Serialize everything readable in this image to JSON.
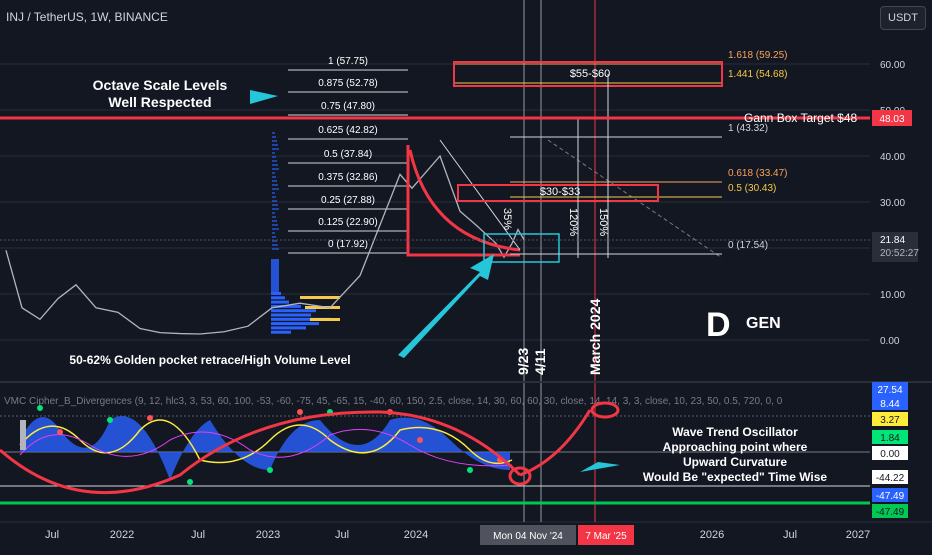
{
  "header": {
    "symbol_line": "INJ / TetherUS, 1W, BINANCE",
    "currency_button": "USDT"
  },
  "price_axis": {
    "ticks": [
      "60.00",
      "50.00",
      "40.00",
      "30.00",
      "20.00",
      "10.00",
      "0.00"
    ],
    "current_price": "21.84",
    "countdown": "20:52:27",
    "gann_price_tag": "48.03"
  },
  "time_axis": {
    "ticks": [
      "Jul",
      "2022",
      "Jul",
      "2023",
      "Jul",
      "2024",
      "Jul",
      "2026",
      "Jul",
      "2027"
    ],
    "cursor_label_1": "Mon 04 Nov '24",
    "cursor_label_2": "7 Mar '25",
    "cursor_label_partial": "Jul"
  },
  "octave_levels": [
    "1 (57.75)",
    "0.875 (52.78)",
    "0.75 (47.80)",
    "0.625 (42.82)",
    "0.5 (37.84)",
    "0.375 (32.86)",
    "0.25 (27.88)",
    "0.125 (22.90)",
    "0 (17.92)"
  ],
  "fib_levels": [
    {
      "label": "1.618 (59.25)",
      "color": "#f7a45c"
    },
    {
      "label": "1.441 (54.68)",
      "color": "#f7c948"
    },
    {
      "label": "1 (43.32)",
      "color": "#d1d4dc"
    },
    {
      "label": "0.618 (33.47)",
      "color": "#f7a45c"
    },
    {
      "label": "0.5 (30.43)",
      "color": "#f7c948"
    },
    {
      "label": "0 (17.54)",
      "color": "#d1d4dc"
    }
  ],
  "annotations": {
    "octave_title": "Octave Scale Levels",
    "octave_sub": "Well Respected",
    "gann": "Gann Box Target $48",
    "box_top": "$55-$60",
    "box_mid": "$30-$33",
    "pct_35": "35%",
    "pct_120": "120%",
    "pct_150": "150%",
    "golden_pocket": "50-62% Golden pocket retrace/High Volume Level",
    "date_923": "9/23",
    "date_411": "4/11",
    "march": "March 2024",
    "logo": "GEN",
    "wt_line1": "Wave Trend Oscillator",
    "wt_line2": "Approaching point where",
    "wt_line3": "Upward Curvature",
    "wt_line4": "Would Be \"expected\" Time Wise"
  },
  "oscillator": {
    "title": "VMC Cipher_B_Divergences (9, 12, hlc3, 3, 53, 60, 100, -53, -60, -75, 45, -65, 15, -40, 60, 150, 2.5, close, 14, 30, 60, 60, 30, close, 14, 14, 3, 3, close, 10, 23, 50, 0.5, 720, 0, 0",
    "values": [
      {
        "label": "27.54",
        "color": "#2962ff"
      },
      {
        "label": "8.44",
        "color": "#2962ff"
      },
      {
        "label": "3.27",
        "color": "#ffeb3b"
      },
      {
        "label": "1.84",
        "color": "#00e676"
      },
      {
        "label": "0.00",
        "color": "#ffffff"
      },
      {
        "label": "-44.22",
        "color": "#ffffff"
      },
      {
        "label": "-47.49",
        "color": "#2962ff"
      },
      {
        "label": "-47.49",
        "color": "#00c853"
      }
    ]
  },
  "colors": {
    "background": "#131722",
    "price_line": "#b2b5be",
    "red": "#f23645",
    "cyan": "#26c6da",
    "grid": "#2a2e39"
  },
  "chart_data": {
    "type": "line",
    "title": "INJ / TetherUS, 1W, BINANCE",
    "ylim": [
      0,
      65
    ],
    "series": [
      {
        "x": [
          "2021-03",
          "2021-05",
          "2021-07",
          "2021-09",
          "2021-11",
          "2022-01",
          "2022-03",
          "2022-05",
          "2022-07",
          "2022-09",
          "2022-11",
          "2023-01",
          "2023-03",
          "2023-05",
          "2023-07",
          "2023-09",
          "2023-11",
          "2024-01",
          "2024-02",
          "2024-03",
          "2024-04",
          "2024-05",
          "2024-06",
          "2024-07",
          "2024-08",
          "2024-09",
          "2024-10",
          "2024-11"
        ],
        "values": [
          19.5,
          7,
          4.5,
          9,
          12,
          7,
          6,
          2.5,
          1.6,
          1.4,
          1.3,
          1.8,
          3,
          7,
          8,
          7,
          14,
          36,
          33,
          40,
          28,
          25,
          23,
          21,
          18,
          21,
          24,
          21.8
        ]
      }
    ]
  }
}
